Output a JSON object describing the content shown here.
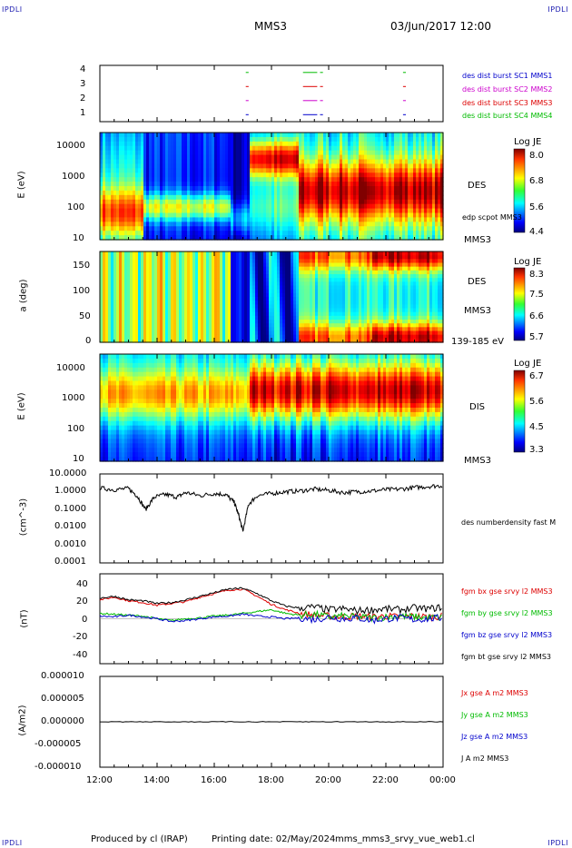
{
  "header": {
    "corner_tl": "IPDLI",
    "corner_tr": "IPDLI",
    "spacecraft": "MMS3",
    "datetime": "03/Jun/2017 12:00",
    "corner_bl": "IPDLI",
    "corner_br": "IPDLI"
  },
  "footer": {
    "produced_by": "Produced by cl (IRAP)",
    "printing_date": "Printing date: 02/May/2024",
    "filename": "mms_mms3_srvy_vue_web1.cl"
  },
  "colors": {
    "mms1": "#0000cc",
    "mms2": "#cc00cc",
    "mms3": "#dd0000",
    "mms4": "#00bb00",
    "bx": "#dd0000",
    "by": "#00bb00",
    "bz": "#0000cc",
    "bt": "#000000"
  },
  "x_axis": {
    "ticks": [
      "12:00",
      "14:00",
      "16:00",
      "18:00",
      "20:00",
      "22:00",
      "00:00"
    ],
    "range_hours": [
      12,
      24
    ]
  },
  "panels": {
    "burst": {
      "ticks": [
        "1",
        "2",
        "3",
        "4"
      ],
      "legend": [
        {
          "text": "des dist burst SC1 MMS1",
          "color": "#0000cc"
        },
        {
          "text": "des dist burst SC2 MMS2",
          "color": "#cc00cc"
        },
        {
          "text": "des dist burst SC3 MMS3",
          "color": "#dd0000"
        },
        {
          "text": "des dist burst SC4 MMS4",
          "color": "#00bb00"
        }
      ]
    },
    "des_energy": {
      "ylabel": "E (eV)",
      "ticks": [
        "10000",
        "1000",
        "100",
        "10"
      ],
      "right_label": "DES",
      "right_label2": "edp scpot MMS3",
      "right_label3": "MMS3",
      "colorbar_title": "Log JE",
      "colorbar_ticks": [
        "8.0",
        "6.8",
        "5.6",
        "4.4"
      ]
    },
    "des_pitch": {
      "ylabel": "a (deg)",
      "ticks": [
        "150",
        "100",
        "50",
        "0"
      ],
      "right_label": "DES",
      "right_label2": "MMS3",
      "right_label3": "139-185 eV",
      "colorbar_title": "Log JE",
      "colorbar_ticks": [
        "8.3",
        "7.5",
        "6.6",
        "5.7"
      ]
    },
    "dis_energy": {
      "ylabel": "E (eV)",
      "ticks": [
        "10000",
        "1000",
        "100",
        "10"
      ],
      "right_label": "DIS",
      "right_label2": "MMS3",
      "colorbar_title": "Log JE",
      "colorbar_ticks": [
        "6.7",
        "5.6",
        "4.5",
        "3.3"
      ]
    },
    "density": {
      "ylabel": "(cm^-3)",
      "ticks": [
        "10.0000",
        "1.0000",
        "0.1000",
        "0.0100",
        "0.0010",
        "0.0001"
      ],
      "right_label": "des numberdensity fast M"
    },
    "bfield": {
      "ylabel": "(nT)",
      "ticks": [
        "40",
        "20",
        "0",
        "-20",
        "-40"
      ],
      "legend": [
        {
          "text": "fgm bx gse srvy l2 MMS3",
          "color": "#dd0000"
        },
        {
          "text": "fgm by gse srvy l2 MMS3",
          "color": "#00bb00"
        },
        {
          "text": "fgm bz gse srvy l2 MMS3",
          "color": "#0000cc"
        },
        {
          "text": "fgm bt gse srvy l2 MMS3",
          "color": "#000000"
        }
      ]
    },
    "current": {
      "ylabel": "(A/m2)",
      "ticks": [
        "0.000010",
        "0.000005",
        "0.000000",
        "-0.000005",
        "-0.000010"
      ],
      "legend": [
        {
          "text": "Jx gse A m2 MMS3",
          "color": "#dd0000"
        },
        {
          "text": "Jy gse A m2 MMS3",
          "color": "#00bb00"
        },
        {
          "text": "Jz gse A m2 MMS3",
          "color": "#0000cc"
        },
        {
          "text": "J A m2 MMS3",
          "color": "#000000"
        }
      ]
    }
  },
  "chart_data": [
    {
      "type": "scatter",
      "name_panel": "burst intervals",
      "x_units": "hours",
      "ylim": [
        0.5,
        4.5
      ],
      "series": [
        {
          "name": "des dist burst SC1 MMS1",
          "y": 1,
          "intervals": [
            [
              17.1,
              17.2
            ],
            [
              19.1,
              19.6
            ],
            [
              19.7,
              19.8
            ],
            [
              22.6,
              22.7
            ]
          ]
        },
        {
          "name": "des dist burst SC2 MMS2",
          "y": 2,
          "intervals": [
            [
              17.1,
              17.2
            ],
            [
              19.1,
              19.6
            ],
            [
              19.7,
              19.8
            ],
            [
              22.6,
              22.7
            ]
          ]
        },
        {
          "name": "des dist burst SC3 MMS3",
          "y": 3,
          "intervals": [
            [
              17.1,
              17.2
            ],
            [
              19.1,
              19.6
            ],
            [
              19.7,
              19.8
            ],
            [
              22.6,
              22.7
            ]
          ]
        },
        {
          "name": "des dist burst SC4 MMS4",
          "y": 4,
          "intervals": [
            [
              17.1,
              17.2
            ],
            [
              19.1,
              19.6
            ],
            [
              19.7,
              19.8
            ],
            [
              22.6,
              22.7
            ]
          ]
        }
      ]
    },
    {
      "type": "heatmap",
      "title": "DES",
      "ylabel": "E (eV)",
      "ylim": [
        10,
        30000
      ],
      "y_scale": "log",
      "colorbar": [
        4.4,
        8.0
      ]
    },
    {
      "type": "heatmap",
      "title": "DES",
      "ylabel": "a (deg)",
      "ylim": [
        0,
        180
      ],
      "colorbar": [
        5.7,
        8.3
      ]
    },
    {
      "type": "heatmap",
      "title": "DIS",
      "ylabel": "E (eV)",
      "ylim": [
        10,
        30000
      ],
      "y_scale": "log",
      "colorbar": [
        3.3,
        6.7
      ]
    },
    {
      "type": "line",
      "ylabel": "(cm^-3)",
      "y_scale": "log",
      "ylim": [
        0.0001,
        10
      ],
      "series": [
        {
          "name": "des numberdensity fast M",
          "x": [
            12.0,
            12.5,
            13.0,
            13.3,
            13.6,
            13.9,
            14.3,
            14.7,
            15.0,
            15.5,
            16.0,
            16.4,
            16.7,
            16.85,
            17.0,
            17.2,
            17.5,
            18.0,
            18.5,
            19.0,
            19.5,
            20.0,
            20.5,
            21.0,
            21.5,
            22.0,
            22.5,
            23.0,
            23.5,
            24.0
          ],
          "y": [
            1.6,
            1.3,
            1.5,
            0.6,
            0.1,
            0.5,
            0.7,
            0.5,
            0.9,
            0.6,
            0.8,
            0.7,
            0.25,
            0.05,
            0.006,
            0.2,
            0.6,
            0.8,
            1.0,
            1.1,
            1.4,
            1.2,
            0.9,
            1.0,
            1.1,
            1.3,
            1.4,
            1.7,
            2.0,
            2.2
          ]
        }
      ]
    },
    {
      "type": "line",
      "ylabel": "(nT)",
      "ylim": [
        -50,
        50
      ],
      "x": [
        12.0,
        12.5,
        13.0,
        13.5,
        14.0,
        14.5,
        15.0,
        15.5,
        16.0,
        16.5,
        17.0,
        17.5,
        18.0,
        18.5,
        19.0,
        19.5,
        20.0,
        20.5,
        21.0,
        21.5,
        22.0,
        22.5,
        23.0,
        23.5,
        24.0
      ],
      "series": [
        {
          "name": "fgm bx gse srvy l2 MMS3",
          "values": [
            21,
            24,
            20,
            18,
            15,
            17,
            19,
            24,
            28,
            32,
            33,
            25,
            16,
            10,
            6,
            4,
            3,
            2,
            3,
            2,
            3,
            2,
            3,
            2,
            3
          ]
        },
        {
          "name": "fgm by gse srvy l2 MMS3",
          "values": [
            6,
            5,
            4,
            3,
            0,
            -2,
            0,
            1,
            3,
            4,
            6,
            8,
            10,
            6,
            4,
            5,
            2,
            3,
            2,
            1,
            2,
            3,
            2,
            1,
            2
          ]
        },
        {
          "name": "fgm bz gse srvy l2 MMS3",
          "values": [
            3,
            2,
            4,
            2,
            0,
            -3,
            -2,
            0,
            2,
            3,
            5,
            3,
            2,
            0,
            1,
            -1,
            2,
            0,
            1,
            -2,
            0,
            1,
            -1,
            0,
            1
          ]
        },
        {
          "name": "fgm bt gse srvy l2 MMS3",
          "values": [
            23,
            25,
            21,
            20,
            17,
            18,
            21,
            25,
            29,
            33,
            34,
            28,
            20,
            14,
            12,
            13,
            10,
            11,
            9,
            10,
            11,
            10,
            12,
            11,
            13
          ]
        }
      ]
    },
    {
      "type": "line",
      "ylabel": "(A/m2)",
      "ylim": [
        -1e-05,
        1e-05
      ],
      "series": [
        {
          "name": "J A m2 MMS3",
          "x": [
            12,
            24
          ],
          "y": [
            0.0,
            0.0
          ]
        }
      ]
    }
  ]
}
